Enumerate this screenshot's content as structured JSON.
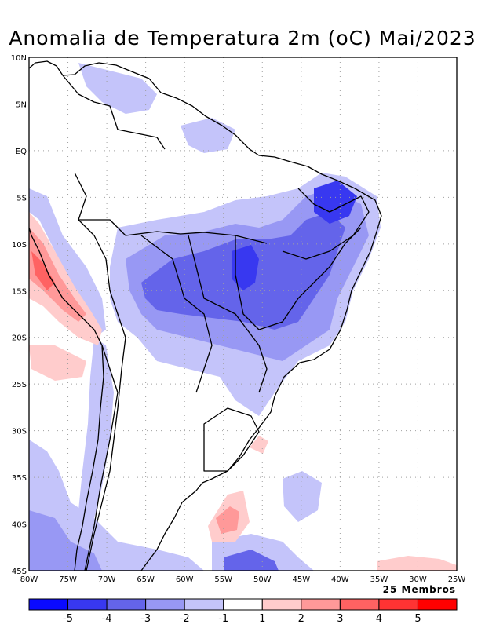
{
  "title": "Anomalia de Temperatura 2m (oC) Mai/2023",
  "members_label": "25 Membros",
  "lat_ticks": [
    "10N",
    "5N",
    "EQ",
    "5S",
    "10S",
    "15S",
    "20S",
    "25S",
    "30S",
    "35S",
    "40S",
    "45S"
  ],
  "lon_ticks": [
    "80W",
    "75W",
    "70W",
    "65W",
    "60W",
    "55W",
    "50W",
    "45W",
    "40W",
    "35W",
    "30W",
    "25W"
  ],
  "colorbar": {
    "labels": [
      "-5",
      "-4",
      "-3",
      "-2",
      "-1",
      "1",
      "2",
      "3",
      "4",
      "5"
    ],
    "colors": [
      "#0a0aff",
      "#3838f0",
      "#6464ea",
      "#9898f4",
      "#c4c4fa",
      "#ffffff",
      "#ffcccc",
      "#ff9999",
      "#ff6262",
      "#ff3333",
      "#ff0000"
    ]
  },
  "colors": {
    "blue1": "#c4c4fa",
    "blue2": "#9898f4",
    "blue3": "#6464ea",
    "blue4": "#3838f0",
    "red1": "#ffcccc",
    "red2": "#ff9999",
    "grid": "#a0a0a0"
  }
}
